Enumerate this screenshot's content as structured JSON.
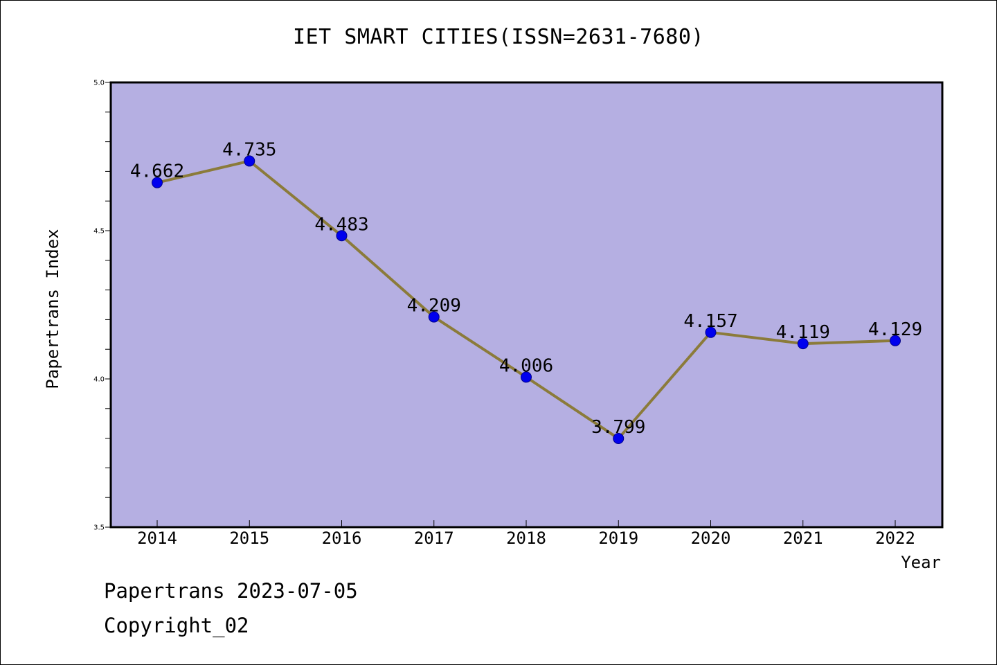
{
  "chart_data": {
    "type": "line",
    "title": "IET SMART CITIES(ISSN=2631-7680)",
    "xlabel": "Year",
    "ylabel": "Papertrans Index",
    "categories": [
      "2014",
      "2015",
      "2016",
      "2017",
      "2018",
      "2019",
      "2020",
      "2021",
      "2022"
    ],
    "series": [
      {
        "values": [
          4.662,
          4.735,
          4.483,
          4.209,
          4.006,
          3.799,
          4.157,
          4.119,
          4.129
        ],
        "labels": [
          "4.662",
          "4.735",
          "4.483",
          "4.209",
          "4.006",
          "3.799",
          "4.157",
          "4.119",
          "4.129"
        ]
      }
    ],
    "ylim": [
      3.5,
      5.0
    ],
    "yticks": [
      "3.5",
      "4.0",
      "4.5",
      "5.0"
    ],
    "grid": false,
    "colors": {
      "plot_background": "#b5afe2",
      "line": "#8b7b3a",
      "marker": "#0000ee"
    }
  },
  "footer": {
    "line1": "Papertrans 2023-07-05",
    "line2": "Copyright_02"
  }
}
